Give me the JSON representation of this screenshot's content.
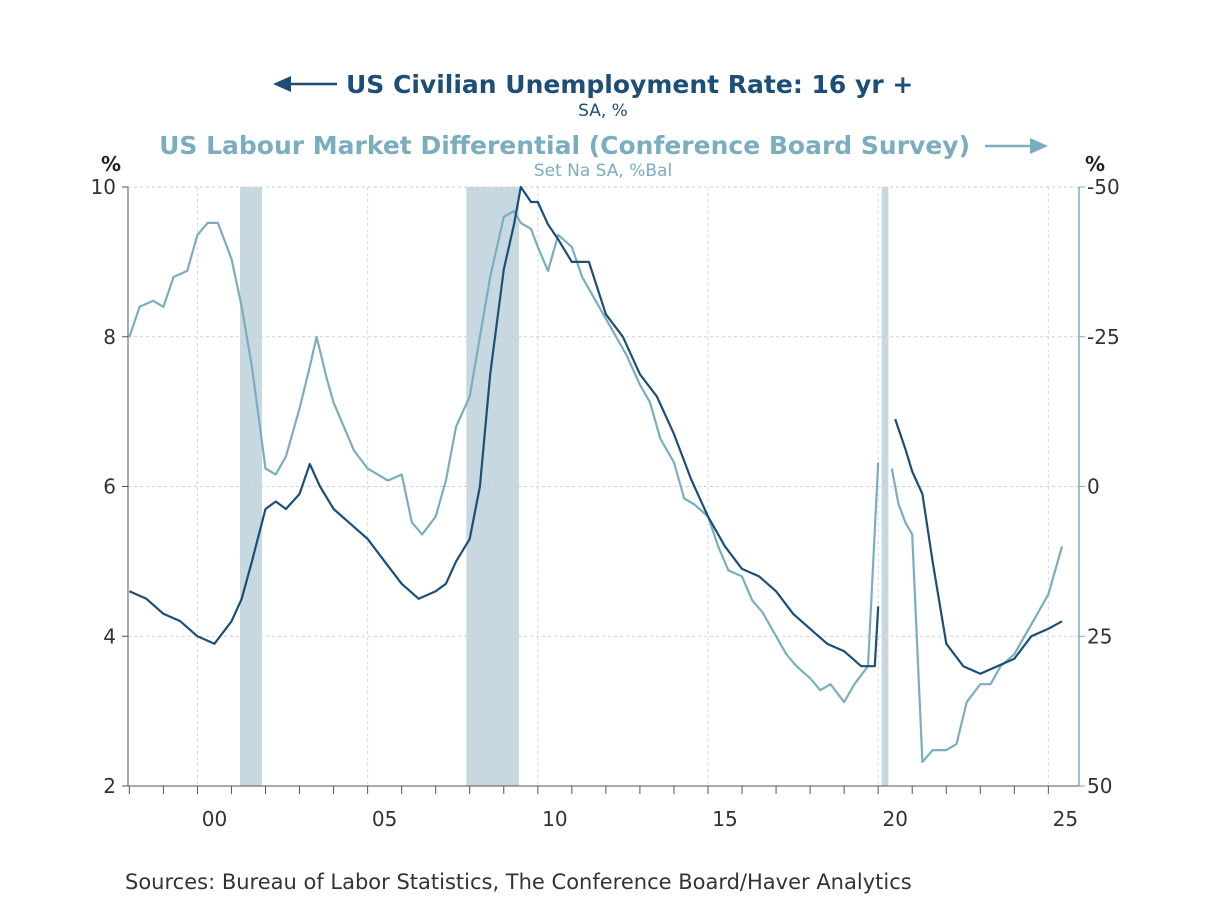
{
  "chart_data": {
    "type": "line",
    "series": [
      {
        "name": "US Civilian Unemployment Rate: 16 yr +",
        "subtitle": "SA, %",
        "axis": "left",
        "color": "#1d4e77",
        "x": [
          1998.0,
          1998.5,
          1999.0,
          1999.5,
          2000.0,
          2000.5,
          2001.0,
          2001.3,
          2001.6,
          2002.0,
          2002.3,
          2002.6,
          2003.0,
          2003.3,
          2003.6,
          2004.0,
          2004.5,
          2005.0,
          2005.5,
          2006.0,
          2006.5,
          2007.0,
          2007.3,
          2007.6,
          2008.0,
          2008.3,
          2008.6,
          2009.0,
          2009.3,
          2009.5,
          2009.8,
          2010.0,
          2010.3,
          2010.6,
          2011.0,
          2011.5,
          2012.0,
          2012.5,
          2013.0,
          2013.5,
          2014.0,
          2014.5,
          2015.0,
          2015.5,
          2016.0,
          2016.5,
          2017.0,
          2017.5,
          2018.0,
          2018.5,
          2019.0,
          2019.5,
          2019.9,
          2020.0,
          2020.3,
          2020.5,
          2020.8,
          2021.0,
          2021.3,
          2021.6,
          2022.0,
          2022.5,
          2023.0,
          2023.5,
          2024.0,
          2024.5,
          2025.0,
          2025.4
        ],
        "values": [
          4.6,
          4.5,
          4.3,
          4.2,
          4.0,
          3.9,
          4.2,
          4.5,
          5.0,
          5.7,
          5.8,
          5.7,
          5.9,
          6.3,
          6.0,
          5.7,
          5.5,
          5.3,
          5.0,
          4.7,
          4.5,
          4.6,
          4.7,
          5.0,
          5.3,
          6.0,
          7.5,
          8.9,
          9.5,
          10.0,
          9.8,
          9.8,
          9.5,
          9.3,
          9.0,
          9.0,
          8.3,
          8.0,
          7.5,
          7.2,
          6.7,
          6.1,
          5.6,
          5.2,
          4.9,
          4.8,
          4.6,
          4.3,
          4.1,
          3.9,
          3.8,
          3.6,
          3.6,
          4.4,
          null,
          6.9,
          6.5,
          6.2,
          5.9,
          5.0,
          3.9,
          3.6,
          3.5,
          3.6,
          3.7,
          4.0,
          4.1,
          4.2
        ]
      },
      {
        "name": "US Labour Market Differential (Conference Board Survey)",
        "subtitle": "Set Na  SA, %Bal",
        "axis": "right",
        "color": "#7aaebf",
        "x": [
          1998.0,
          1998.3,
          1998.7,
          1999.0,
          1999.3,
          1999.7,
          2000.0,
          2000.3,
          2000.6,
          2001.0,
          2001.3,
          2001.6,
          2002.0,
          2002.3,
          2002.6,
          2003.0,
          2003.3,
          2003.5,
          2003.8,
          2004.0,
          2004.3,
          2004.6,
          2005.0,
          2005.3,
          2005.6,
          2006.0,
          2006.3,
          2006.6,
          2007.0,
          2007.3,
          2007.6,
          2008.0,
          2008.3,
          2008.6,
          2009.0,
          2009.3,
          2009.5,
          2009.8,
          2010.0,
          2010.3,
          2010.6,
          2011.0,
          2011.3,
          2011.6,
          2012.0,
          2012.3,
          2012.6,
          2013.0,
          2013.3,
          2013.6,
          2014.0,
          2014.3,
          2014.6,
          2015.0,
          2015.3,
          2015.6,
          2016.0,
          2016.3,
          2016.6,
          2017.0,
          2017.3,
          2017.6,
          2018.0,
          2018.3,
          2018.6,
          2019.0,
          2019.3,
          2019.7,
          2020.0,
          2020.2,
          2020.4,
          2020.6,
          2020.8,
          2021.0,
          2021.3,
          2021.6,
          2022.0,
          2022.3,
          2022.6,
          2023.0,
          2023.3,
          2023.6,
          2024.0,
          2024.3,
          2024.6,
          2025.0,
          2025.4
        ],
        "values": [
          -25,
          -30,
          -31,
          -30,
          -35,
          -36,
          -42,
          -44,
          -44,
          -38,
          -30,
          -20,
          -3,
          -2,
          -5,
          -13,
          -20,
          -25,
          -18,
          -14,
          -10,
          -6,
          -3,
          -2,
          -1,
          -2,
          6,
          8,
          5,
          -1,
          -10,
          -15,
          -25,
          -35,
          -45,
          -46,
          -44,
          -43,
          -40,
          -36,
          -42,
          -40,
          -35,
          -32,
          -28,
          -25,
          -22,
          -17,
          -14,
          -8,
          -4,
          2,
          3,
          5,
          10,
          14,
          15,
          19,
          21,
          25,
          28,
          30,
          32,
          34,
          33,
          36,
          33,
          30,
          -4,
          null,
          -3,
          3,
          6,
          8,
          46,
          44,
          44,
          43,
          36,
          33,
          33,
          30,
          28,
          25,
          22,
          18,
          10
        ]
      }
    ],
    "xticks": [
      2000,
      2005,
      2010,
      2015,
      2020,
      2025
    ],
    "xticklabels": [
      "00",
      "05",
      "10",
      "15",
      "20",
      "25"
    ],
    "xlim": [
      1997.96,
      2025.9
    ],
    "ylim_left": [
      2,
      10
    ],
    "ylim_right_top_to_bottom": [
      -50,
      50
    ],
    "yticks_left": [
      "10",
      "8",
      "6",
      "4",
      "2"
    ],
    "yticks_right": [
      "-50",
      "-25",
      "0",
      "25",
      "50"
    ],
    "ylabel_left": "%",
    "ylabel_right": "%",
    "recessions": [
      [
        2001.25,
        2001.9
      ],
      [
        2007.9,
        2009.45
      ],
      [
        2020.1,
        2020.3
      ]
    ],
    "recession_color": "#c7d8e1",
    "grid": true
  },
  "source": "Sources:  Bureau of Labor Statistics, The Conference Board/Haver Analytics"
}
